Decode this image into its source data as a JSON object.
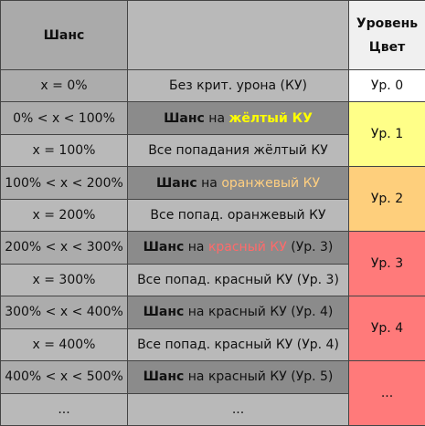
{
  "header": {
    "chance": "Шанс",
    "empty": "",
    "level_line1": "Уровень",
    "level_line2": "Цвет"
  },
  "rows": [
    {
      "chance": "x = 0%",
      "desc": "Без крит. урона (КУ)"
    },
    {
      "chance": "0% < x < 100%",
      "desc_bold": "Шанс",
      "desc_mid": " на ",
      "desc_color": "жёлтый КУ"
    },
    {
      "chance": "x = 100%",
      "desc": "Все попадания жёлтый КУ"
    },
    {
      "chance": "100% < x < 200%",
      "desc_bold": "Шанс",
      "desc_mid": " на ",
      "desc_color": "оранжевый КУ"
    },
    {
      "chance": "x = 200%",
      "desc": "Все попад. оранжевый КУ"
    },
    {
      "chance": "200% < x < 300%",
      "desc_bold": "Шанс",
      "desc_mid": " на ",
      "desc_color": "красный КУ",
      "desc_tail": " (Ур. 3)"
    },
    {
      "chance": "x = 300%",
      "desc": "Все попад. красный КУ (Ур. 3)"
    },
    {
      "chance": "300% < x < 400%",
      "desc_bold": "Шанс",
      "desc_mid": " на красный КУ (Ур. 4)"
    },
    {
      "chance": "x = 400%",
      "desc": "Все попад. красный КУ (Ур. 4)"
    },
    {
      "chance": "400% < x < 500%",
      "desc_bold": "Шанс",
      "desc_mid": " на красный КУ (Ур. 5)"
    },
    {
      "chance": "...",
      "desc": "..."
    }
  ],
  "levels": [
    "Ур. 0",
    "Ур. 1",
    "Ур. 2",
    "Ур. 3",
    "Ур. 4",
    "..."
  ],
  "colors": {
    "level0": "#ffffff",
    "level1": "#ffff88",
    "level2": "#fecf7c",
    "level3": "#ff7a7a",
    "text_yellow": "#ffff00",
    "text_orange": "#ffcf80",
    "text_red": "#ff6a6a"
  }
}
